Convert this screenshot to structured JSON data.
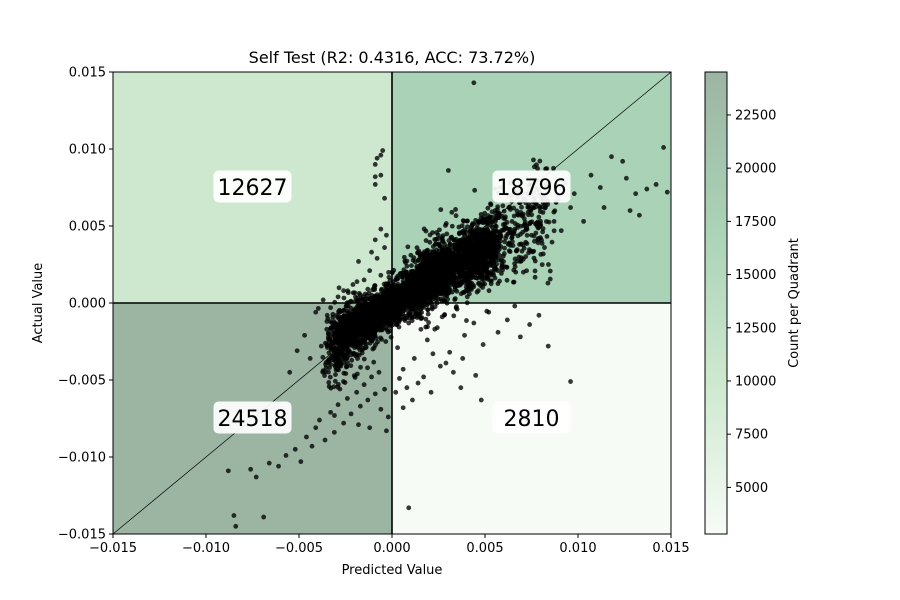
{
  "chart_data": {
    "type": "scatter",
    "title": "Self Test (R2: 0.4316, ACC: 73.72%)",
    "xlabel": "Predicted Value",
    "ylabel": "Actual Value",
    "xlim": [
      -0.015,
      0.015
    ],
    "ylim": [
      -0.015,
      0.015
    ],
    "x_ticks": [
      -0.015,
      -0.01,
      -0.005,
      0.0,
      0.005,
      0.01,
      0.015
    ],
    "x_tick_labels": [
      "−0.015",
      "−0.010",
      "−0.005",
      "0.000",
      "0.005",
      "0.010",
      "0.015"
    ],
    "y_ticks": [
      -0.015,
      -0.01,
      -0.005,
      0.0,
      0.005,
      0.01,
      0.015
    ],
    "y_tick_labels": [
      "−0.015",
      "−0.010",
      "−0.005",
      "0.000",
      "0.005",
      "0.010",
      "0.015"
    ],
    "grid": false,
    "diagonal_line": true,
    "quadrants": [
      {
        "name": "top-left",
        "count": 12627,
        "color": "#cde8cf",
        "label_x": -0.0075,
        "label_y": 0.0075
      },
      {
        "name": "top-right",
        "count": 18796,
        "color": "#aad2b6",
        "label_x": 0.0075,
        "label_y": 0.0075
      },
      {
        "name": "bottom-left",
        "count": 24518,
        "color": "#9cb5a3",
        "label_x": -0.0075,
        "label_y": -0.0075
      },
      {
        "name": "bottom-right",
        "count": 2810,
        "color": "#f7fbf6",
        "label_x": 0.0075,
        "label_y": -0.0075
      }
    ],
    "colorbar": {
      "label": "Count per Quadrant",
      "range": [
        2810,
        24518
      ],
      "ticks": [
        5000,
        7500,
        10000,
        12500,
        15000,
        17500,
        20000,
        22500
      ],
      "tick_labels": [
        "5000",
        "7500",
        "10000",
        "12500",
        "15000",
        "17500",
        "20000",
        "22500"
      ],
      "colors": [
        "#f7fbf6",
        "#cde8cf",
        "#aad2b6",
        "#9cb5a3"
      ]
    },
    "point_color": "#000000",
    "points": [
      [
        0.0044,
        0.0143
      ],
      [
        -0.0005,
        0.0099
      ],
      [
        -0.0006,
        0.0096
      ],
      [
        -0.0008,
        0.0094
      ],
      [
        -0.0009,
        0.009
      ],
      [
        -0.0009,
        0.0082
      ],
      [
        -0.0009,
        0.0077
      ],
      [
        -0.0006,
        0.0083
      ],
      [
        -0.0004,
        0.0068
      ],
      [
        0.0146,
        0.0101
      ],
      [
        0.0148,
        0.0072
      ],
      [
        0.0142,
        0.0077
      ],
      [
        0.0137,
        0.0074
      ],
      [
        0.0131,
        0.0071
      ],
      [
        0.0126,
        0.0081
      ],
      [
        0.0124,
        0.0092
      ],
      [
        0.0118,
        0.0095
      ],
      [
        0.0128,
        0.006
      ],
      [
        0.0133,
        0.0057
      ],
      [
        0.0114,
        0.0062
      ],
      [
        0.0112,
        0.0075
      ],
      [
        0.0107,
        0.0083
      ],
      [
        0.0103,
        0.0053
      ],
      [
        0.0098,
        0.0071
      ],
      [
        0.0096,
        0.0062
      ],
      [
        0.0093,
        0.0078
      ],
      [
        0.0091,
        0.0047
      ],
      [
        0.0087,
        0.0059
      ],
      [
        0.0084,
        0.0066
      ],
      [
        0.0082,
        0.0036
      ],
      [
        0.0078,
        0.0052
      ],
      [
        0.0075,
        0.0044
      ],
      [
        0.0072,
        0.0065
      ],
      [
        0.0069,
        0.0027
      ],
      [
        0.0066,
        0.0048
      ],
      [
        0.0063,
        0.0039
      ],
      [
        0.006,
        0.0055
      ],
      [
        0.0057,
        0.0021
      ],
      [
        0.0054,
        0.0043
      ],
      [
        0.0052,
        0.0033
      ],
      [
        0.0049,
        0.0047
      ],
      [
        0.0046,
        0.0016
      ],
      [
        0.0043,
        0.0038
      ],
      [
        0.0041,
        0.0025
      ],
      [
        0.0084,
        -0.0028
      ],
      [
        0.0079,
        -0.0008
      ],
      [
        0.0074,
        -0.0014
      ],
      [
        0.0069,
        -0.0022
      ],
      [
        0.0066,
        -0.0002
      ],
      [
        0.0062,
        -0.0011
      ],
      [
        0.0057,
        -0.0019
      ],
      [
        0.0052,
        -0.0006
      ],
      [
        0.0049,
        -0.0027
      ],
      [
        0.0044,
        -0.0013
      ],
      [
        0.0039,
        -0.0021
      ],
      [
        0.0035,
        -0.0004
      ],
      [
        0.0031,
        -0.0032
      ],
      [
        0.0027,
        -0.0009
      ],
      [
        0.0023,
        -0.0017
      ],
      [
        0.0019,
        -0.0024
      ],
      [
        0.0015,
        -0.0007
      ],
      [
        0.0012,
        -0.0036
      ],
      [
        0.0009,
        -0.0013
      ],
      [
        0.0006,
        -0.0043
      ],
      [
        0.0003,
        -0.0029
      ],
      [
        0.0017,
        -0.0048
      ],
      [
        0.0021,
        -0.0058
      ],
      [
        0.0014,
        -0.0052
      ],
      [
        0.0008,
        -0.0055
      ],
      [
        0.0004,
        -0.0049
      ],
      [
        0.0022,
        -0.0033
      ],
      [
        0.0029,
        -0.0039
      ],
      [
        0.0033,
        -0.0045
      ],
      [
        0.0037,
        -0.0055
      ],
      [
        0.0045,
        -0.0047
      ],
      [
        0.0038,
        -0.0036
      ],
      [
        0.0026,
        -0.0041
      ],
      [
        0.0011,
        -0.0063
      ],
      [
        0.0006,
        -0.0068
      ],
      [
        0.0002,
        -0.0058
      ],
      [
        0.0009,
        -0.0133
      ],
      [
        0.0048,
        -0.0063
      ],
      [
        0.0096,
        -0.0051
      ],
      [
        -0.0085,
        -0.0138
      ],
      [
        -0.0084,
        -0.0145
      ],
      [
        -0.0069,
        -0.0139
      ],
      [
        -0.0088,
        -0.0109
      ],
      [
        -0.0076,
        -0.0108
      ],
      [
        -0.0073,
        -0.0113
      ],
      [
        -0.0066,
        -0.0104
      ],
      [
        -0.0061,
        -0.0106
      ],
      [
        -0.0057,
        -0.0099
      ],
      [
        -0.0052,
        -0.0095
      ],
      [
        -0.0049,
        -0.0103
      ],
      [
        -0.0046,
        -0.0087
      ],
      [
        -0.0043,
        -0.0093
      ],
      [
        -0.0041,
        -0.0081
      ],
      [
        -0.0039,
        -0.0076
      ],
      [
        -0.0036,
        -0.0089
      ],
      [
        -0.0033,
        -0.0071
      ],
      [
        -0.0031,
        -0.0084
      ],
      [
        -0.0029,
        -0.0066
      ],
      [
        -0.0026,
        -0.0078
      ],
      [
        -0.0024,
        -0.0062
      ],
      [
        -0.0022,
        -0.0072
      ],
      [
        -0.0019,
        -0.0058
      ],
      [
        -0.0017,
        -0.0067
      ],
      [
        -0.0015,
        -0.0053
      ],
      [
        -0.0013,
        -0.0063
      ],
      [
        -0.0011,
        -0.0048
      ],
      [
        -0.0009,
        -0.0059
      ],
      [
        -0.0007,
        -0.0045
      ],
      [
        -0.0004,
        -0.0056
      ],
      [
        -0.0002,
        -0.0074
      ],
      [
        -0.0006,
        -0.0069
      ],
      [
        -0.0012,
        -0.0081
      ],
      [
        -0.0018,
        -0.0079
      ],
      [
        -0.0003,
        -0.0083
      ],
      [
        -0.0035,
        -0.0012
      ],
      [
        -0.0041,
        -0.0006
      ],
      [
        -0.0047,
        -0.0021
      ],
      [
        -0.0038,
        -0.0028
      ],
      [
        -0.0033,
        -0.0003
      ],
      [
        -0.0051,
        -0.0031
      ],
      [
        -0.0044,
        -0.0036
      ],
      [
        -0.0055,
        -0.0045
      ],
      [
        -0.0028,
        -0.0015
      ],
      [
        -0.0026,
        -0.0005
      ],
      [
        -0.0006,
        0.0048
      ],
      [
        -0.0004,
        0.0036
      ],
      [
        -0.0008,
        0.0029
      ],
      [
        -0.0012,
        0.0021
      ],
      [
        -0.0015,
        0.0015
      ],
      [
        -0.0021,
        0.0012
      ],
      [
        -0.0018,
        0.0027
      ],
      [
        -0.0003,
        0.0044
      ],
      [
        -0.0009,
        0.0041
      ],
      [
        -0.0026,
        0.0008
      ],
      [
        -0.0029,
        0.0004
      ],
      [
        -0.0037,
        0.0002
      ],
      [
        -0.0011,
        0.0033
      ],
      [
        -0.0006,
        0.0018
      ],
      [
        -0.0013,
        0.0009
      ]
    ],
    "dense_bands": [
      {
        "x_range": [
          -0.003,
          0.0055
        ],
        "slope": 0.72,
        "intercept": 0.0,
        "spread": 0.0011,
        "count": 2600,
        "seed": 17
      },
      {
        "x_range": [
          -0.0035,
          0.003
        ],
        "slope": 0.9,
        "intercept": -0.0002,
        "spread": 0.0019,
        "count": 900,
        "seed": 29
      },
      {
        "x_range": [
          0.001,
          0.0085
        ],
        "slope": 0.65,
        "intercept": 0.0003,
        "spread": 0.0016,
        "count": 700,
        "seed": 41
      }
    ]
  }
}
